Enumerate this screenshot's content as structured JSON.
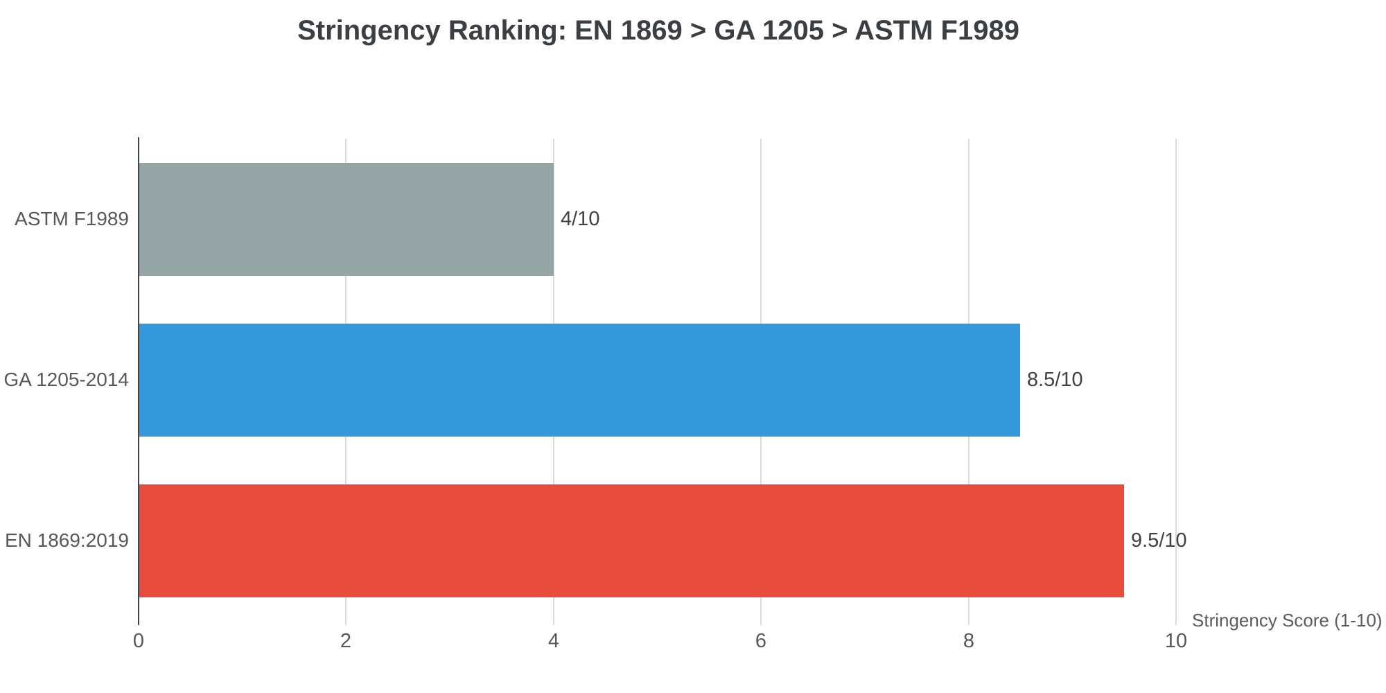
{
  "chart_data": {
    "type": "bar",
    "orientation": "horizontal",
    "title": "Stringency Ranking: EN 1869 > GA 1205 > ASTM F1989",
    "xlabel": "Stringency Score (1-10)",
    "ylabel": "",
    "categories": [
      "ASTM F1989",
      "GA 1205-2014",
      "EN 1869:2019"
    ],
    "values": [
      4,
      8.5,
      9.5
    ],
    "value_labels": [
      "4/10",
      "8.5/10",
      "9.5/10"
    ],
    "bar_colors": [
      "#95A5A6",
      "#3498DB",
      "#E74C3C"
    ],
    "xlim": [
      0,
      10
    ],
    "xticks": [
      "0",
      "2",
      "4",
      "6",
      "8",
      "10"
    ],
    "xtick_values": [
      0,
      2,
      4,
      6,
      8,
      10
    ],
    "grid": true,
    "legend": false,
    "background": "#FFFFFF"
  }
}
